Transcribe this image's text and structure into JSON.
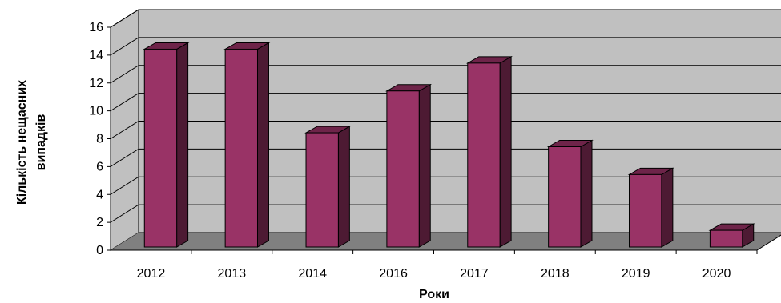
{
  "chart_data": {
    "type": "bar",
    "categories": [
      "2012",
      "2013",
      "2014",
      "2016",
      "2017",
      "2018",
      "2019",
      "2020"
    ],
    "values": [
      15,
      15,
      9,
      12,
      14,
      8,
      6,
      2
    ],
    "xlabel": "Роки",
    "ylabel_lines": [
      "Кількість нещасних",
      "випадків"
    ],
    "ylim": [
      0,
      16
    ],
    "yticks": [
      "0",
      "2",
      "4",
      "6",
      "8",
      "10",
      "12",
      "14",
      "16"
    ],
    "grid": true,
    "legend": "none",
    "style": "3d-column",
    "colors": {
      "bar_front": "#993366",
      "bar_side": "#4d1a33",
      "bar_top": "#6e2449",
      "wall": "#c0c0c0",
      "floor": "#808080",
      "grid": "#000000"
    }
  }
}
